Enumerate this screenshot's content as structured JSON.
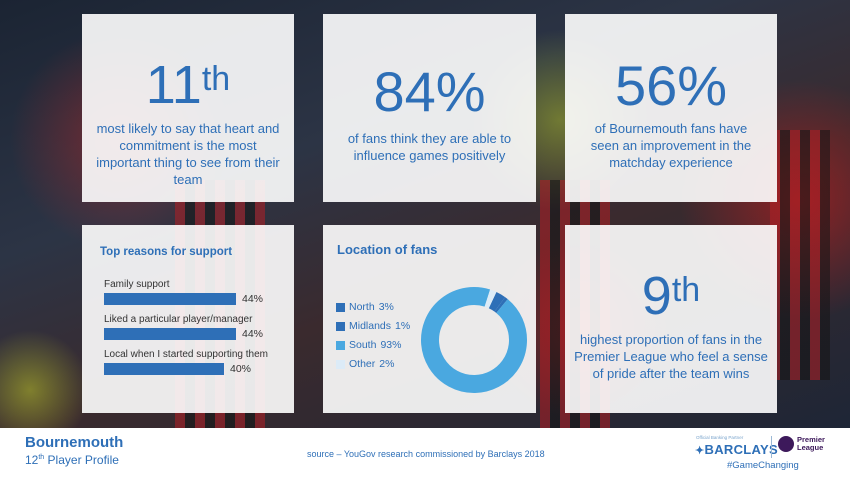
{
  "stat1": {
    "number": "11",
    "suffix": "th",
    "text": "most likely to say that heart and commitment is the most important thing to see from their team"
  },
  "stat2": {
    "number": "84%",
    "text": "of fans think they are able to influence games positively"
  },
  "stat3": {
    "number": "56%",
    "text": "of Bournemouth fans have seen an improvement in the matchday experience"
  },
  "stat4": {
    "number": "9",
    "suffix": "th",
    "text": "highest proportion of fans in the Premier League who feel a sense of pride after the team wins"
  },
  "reasons": {
    "title": "Top reasons for support",
    "items": [
      {
        "label": "Family support",
        "value": 44,
        "value_text": "44%"
      },
      {
        "label": "Liked a particular player/manager",
        "value": 44,
        "value_text": "44%"
      },
      {
        "label": "Local when I started supporting them",
        "value": 40,
        "value_text": "40%"
      }
    ]
  },
  "location": {
    "title": "Location of fans",
    "items": [
      {
        "name": "North",
        "value_text": "3%",
        "value": 3,
        "color": "#2e6fb7"
      },
      {
        "name": "Midlands",
        "value_text": "1%",
        "value": 1,
        "color": "#2e6fb7"
      },
      {
        "name": "South",
        "value_text": "93%",
        "value": 93,
        "color": "#4aa8e0"
      },
      {
        "name": "Other",
        "value_text": "2%",
        "value": 2,
        "color": "#dcebf7"
      }
    ]
  },
  "footer": {
    "club": "Bournemouth",
    "profile_num": "12",
    "profile_sup": "th",
    "profile_rest": "Player Profile",
    "source": "source – YouGov research commissioned by Barclays 2018",
    "partner_note": "Official Banking Partner",
    "barclays": "BARCLAYS",
    "pl_line1": "Premier",
    "pl_line2": "League",
    "hashtag": "#GameChanging"
  },
  "colors": {
    "accent": "#2e6fb7",
    "accent_light": "#4aa8e0"
  }
}
